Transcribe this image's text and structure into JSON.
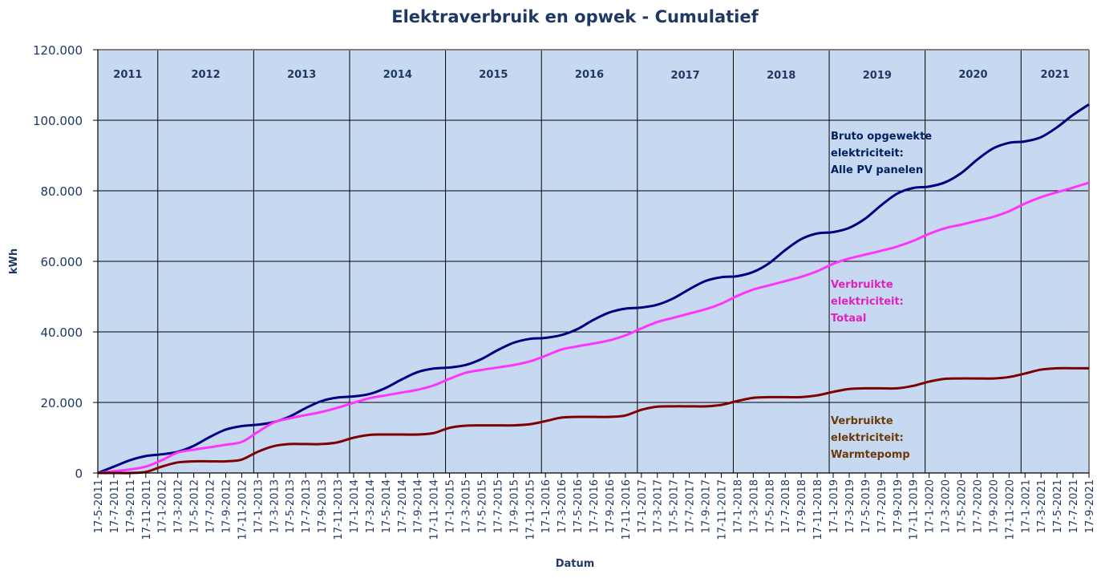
{
  "chart_data": {
    "type": "line",
    "title": "Elektraverbruik en opwek - Cumulatief",
    "xlabel": "Datum",
    "ylabel": "kWh",
    "ylim": [
      0,
      120000
    ],
    "yticks": [
      "0",
      "20.000",
      "40.000",
      "60.000",
      "80.000",
      "100.000",
      "120.000"
    ],
    "ytick_values": [
      0,
      20000,
      40000,
      60000,
      80000,
      100000,
      120000
    ],
    "grid": true,
    "year_labels": [
      "2011",
      "2012",
      "2013",
      "2014",
      "2015",
      "2016",
      "2017",
      "2018",
      "2019",
      "2020",
      "2021"
    ],
    "x": [
      "17-5-2011",
      "17-7-2011",
      "17-9-2011",
      "17-11-2011",
      "17-1-2012",
      "17-3-2012",
      "17-5-2012",
      "17-7-2012",
      "17-9-2012",
      "17-11-2012",
      "17-1-2013",
      "17-3-2013",
      "17-5-2013",
      "17-7-2013",
      "17-9-2013",
      "17-11-2013",
      "17-1-2014",
      "17-3-2014",
      "17-5-2014",
      "17-7-2014",
      "17-9-2014",
      "17-11-2014",
      "17-1-2015",
      "17-3-2015",
      "17-5-2015",
      "17-7-2015",
      "17-9-2015",
      "17-11-2015",
      "17-1-2016",
      "17-3-2016",
      "17-5-2016",
      "17-7-2016",
      "17-9-2016",
      "17-11-2016",
      "17-1-2017",
      "17-3-2017",
      "17-5-2017",
      "17-7-2017",
      "17-9-2017",
      "17-11-2017",
      "17-1-2018",
      "17-3-2018",
      "17-5-2018",
      "17-7-2018",
      "17-9-2018",
      "17-11-2018",
      "17-1-2019",
      "17-3-2019",
      "17-5-2019",
      "17-7-2019",
      "17-9-2019",
      "17-11-2019",
      "17-1-2020",
      "17-3-2020",
      "17-5-2020",
      "17-7-2020",
      "17-9-2020",
      "17-11-2020",
      "17-1-2021",
      "17-3-2021",
      "17-5-2021",
      "17-7-2021",
      "17-9-2021"
    ],
    "series": [
      {
        "name": "Bruto opgewekte elektriciteit: Alle PV panelen",
        "label_lines": [
          "Bruto opgewekte",
          "elektriciteit:",
          "Alle PV panelen"
        ],
        "color": "#000080",
        "label_color": "#002060",
        "values": [
          0,
          1800,
          3600,
          4800,
          5300,
          6000,
          7700,
          10200,
          12300,
          13300,
          13700,
          14400,
          16000,
          18400,
          20400,
          21400,
          21700,
          22400,
          24100,
          26500,
          28600,
          29600,
          29900,
          30600,
          32300,
          34800,
          36900,
          38000,
          38300,
          39100,
          40800,
          43400,
          45500,
          46600,
          46900,
          47700,
          49500,
          52100,
          54400,
          55500,
          55800,
          57000,
          59500,
          63200,
          66300,
          67900,
          68300,
          69500,
          72100,
          75900,
          79200,
          80800,
          81200,
          82400,
          85000,
          88800,
          92000,
          93600,
          94000,
          95200,
          98000,
          101500,
          104500
        ]
      },
      {
        "name": "Verbruikte elektriciteit: Totaal",
        "label_lines": [
          "Verbruikte",
          "elektriciteit:",
          "Totaal"
        ],
        "color": "#ff33ff",
        "label_color": "#e020c0",
        "values": [
          0,
          500,
          1000,
          1800,
          3600,
          5800,
          6600,
          7300,
          8000,
          8800,
          11600,
          14300,
          15500,
          16400,
          17300,
          18500,
          19900,
          21200,
          22000,
          22800,
          23600,
          24800,
          26700,
          28400,
          29200,
          29900,
          30600,
          31600,
          33200,
          35000,
          35900,
          36700,
          37600,
          39000,
          41000,
          42800,
          44000,
          45200,
          46400,
          48000,
          50200,
          52000,
          53200,
          54400,
          55600,
          57200,
          59300,
          60800,
          61900,
          63000,
          64200,
          65800,
          67800,
          69400,
          70400,
          71500,
          72600,
          74200,
          76400,
          78200,
          79600,
          80900,
          82300
        ]
      },
      {
        "name": "Verbruikte elektriciteit: Warmtepomp",
        "label_lines": [
          "Verbruikte",
          "elektriciteit:",
          "Warmtepomp"
        ],
        "color": "#7f0000",
        "label_color": "#6b3a0a",
        "values": [
          0,
          0,
          0,
          300,
          1800,
          3000,
          3300,
          3300,
          3300,
          3800,
          6000,
          7600,
          8200,
          8200,
          8200,
          8700,
          10000,
          10800,
          10900,
          10900,
          10900,
          11300,
          12800,
          13400,
          13500,
          13500,
          13500,
          13800,
          14700,
          15700,
          15900,
          15900,
          15900,
          16300,
          17900,
          18800,
          18900,
          18900,
          18900,
          19300,
          20400,
          21300,
          21500,
          21500,
          21500,
          22000,
          23000,
          23800,
          24000,
          24000,
          24000,
          24700,
          25900,
          26700,
          26800,
          26800,
          26800,
          27200,
          28200,
          29300,
          29700,
          29700,
          29700
        ]
      }
    ],
    "colors": {
      "plot_bg": "#c6d9f0",
      "grid": "#000000",
      "text": "#1f3864"
    }
  }
}
